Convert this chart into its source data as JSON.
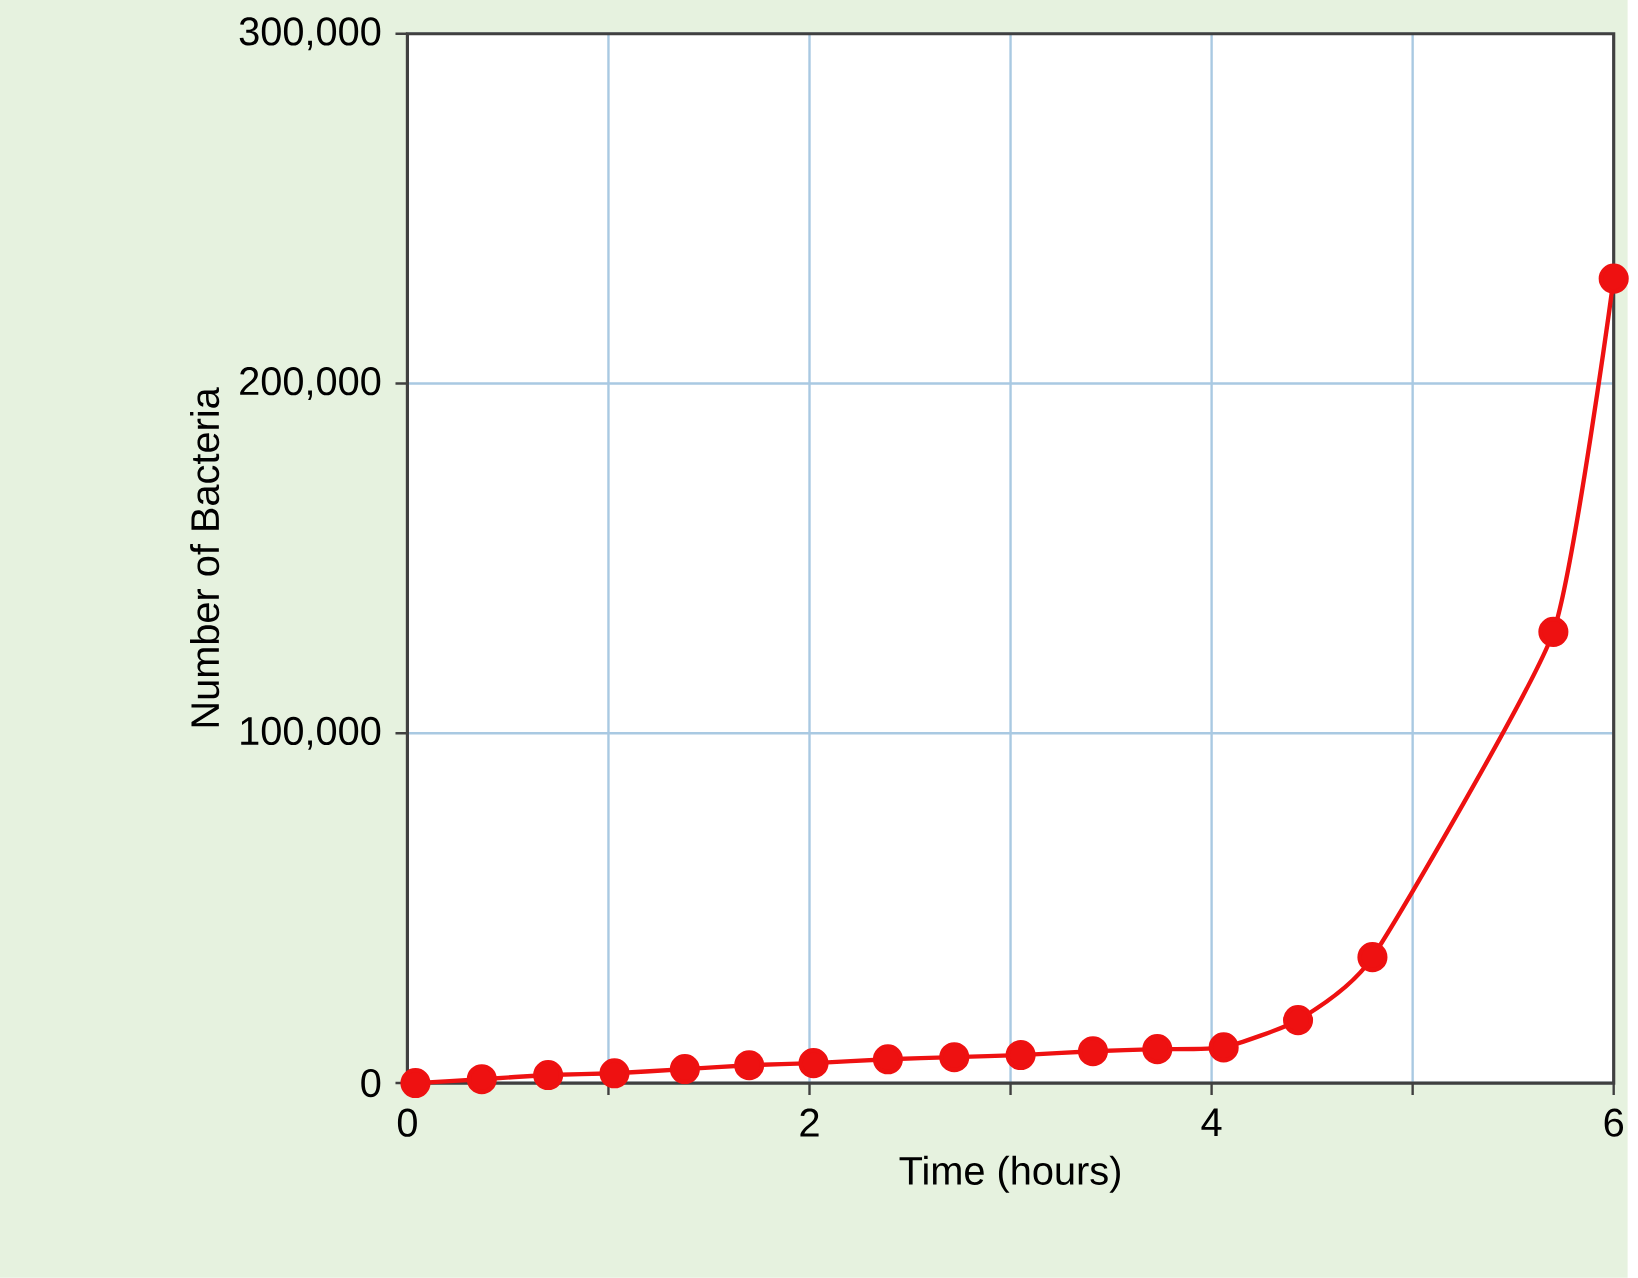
{
  "chart_data": {
    "type": "line",
    "xlabel": "Time (hours)",
    "ylabel": "Number of Bacteria",
    "xlim": [
      0,
      6
    ],
    "ylim": [
      0,
      300000
    ],
    "xticks": [
      0,
      {
        "value": 1,
        "label": null
      },
      2,
      {
        "value": 3,
        "label": null
      },
      4,
      {
        "value": 5,
        "label": null
      },
      6
    ],
    "yticks": [
      0,
      {
        "value": 100000,
        "label": "100,000"
      },
      {
        "value": 200000,
        "label": "200,000"
      },
      {
        "value": 300000,
        "label": "300,000"
      }
    ],
    "grid": true,
    "marker": "circle",
    "line_style": "solid",
    "series": [
      {
        "color": "#ee1111",
        "x": [
          0.04,
          0.37,
          0.7,
          1.03,
          1.38,
          1.7,
          2.02,
          2.39,
          2.72,
          3.05,
          3.41,
          3.73,
          4.06,
          4.43,
          4.8,
          5.7,
          6.0
        ],
        "values": [
          0,
          1100,
          2300,
          2800,
          4000,
          5100,
          5700,
          6800,
          7400,
          8000,
          9100,
          9700,
          10200,
          18000,
          36000,
          129000,
          230000
        ]
      }
    ]
  }
}
